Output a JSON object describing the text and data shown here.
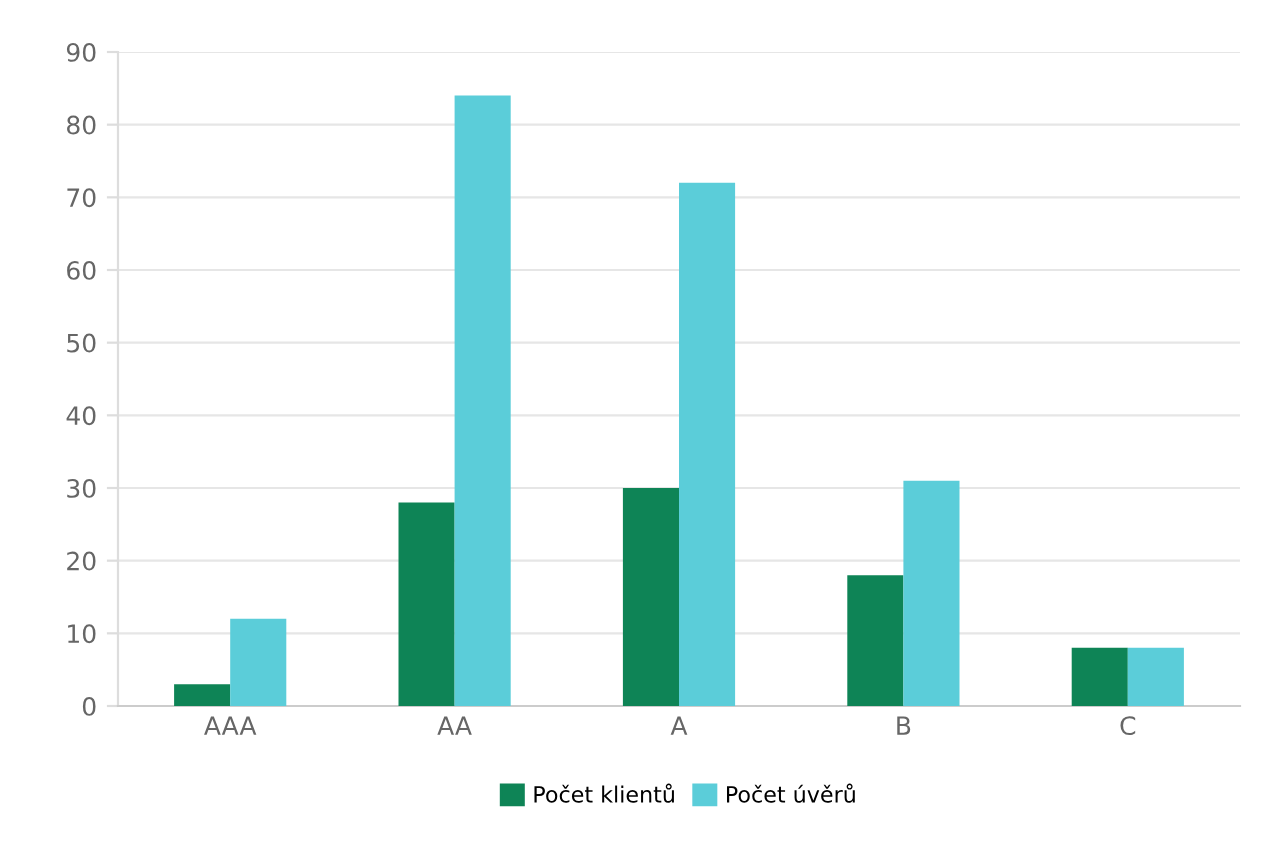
{
  "chart_data": {
    "type": "bar",
    "categories": [
      "AAA",
      "AA",
      "A",
      "B",
      "C"
    ],
    "series": [
      {
        "name": "Počet klientů",
        "color": "#0e8456",
        "values": [
          3,
          28,
          30,
          18,
          8
        ]
      },
      {
        "name": "Počet úvěrů",
        "color": "#5bcdd9",
        "values": [
          12,
          84,
          72,
          31,
          8
        ]
      }
    ],
    "ylim": [
      0,
      90
    ],
    "yticks": [
      0,
      10,
      20,
      30,
      40,
      50,
      60,
      70,
      80,
      90
    ],
    "grid": "y",
    "legend": "bottom"
  }
}
